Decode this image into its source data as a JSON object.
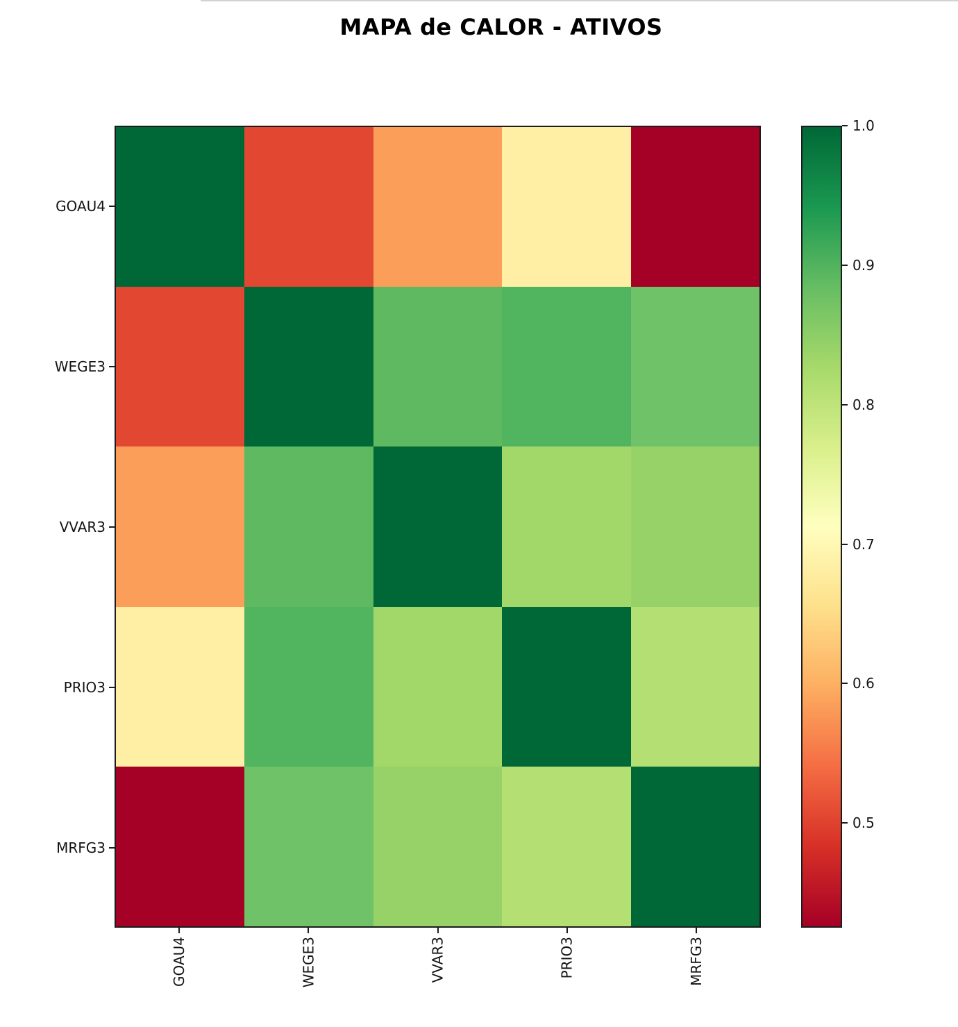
{
  "chart_data": {
    "type": "heatmap",
    "title": "MAPA de CALOR - ATIVOS",
    "x_labels": [
      "GOAU4",
      "WEGE3",
      "VVAR3",
      "PRIO3",
      "MRFG3"
    ],
    "y_labels": [
      "GOAU4",
      "WEGE3",
      "VVAR3",
      "PRIO3",
      "MRFG3"
    ],
    "matrix": [
      [
        1.0,
        0.5,
        0.58,
        0.68,
        0.42
      ],
      [
        0.5,
        1.0,
        0.89,
        0.9,
        0.87
      ],
      [
        0.58,
        0.89,
        1.0,
        0.83,
        0.84
      ],
      [
        0.68,
        0.9,
        0.83,
        1.0,
        0.81
      ],
      [
        0.42,
        0.87,
        0.84,
        0.81,
        1.0
      ]
    ],
    "cell_colors": [
      [
        "#006837",
        "#e24732",
        "#fb9e5a",
        "#feefa4",
        "#a50026"
      ],
      [
        "#e24732",
        "#006837",
        "#5eb961",
        "#51b45e",
        "#6fc267"
      ],
      [
        "#fb9e5a",
        "#5eb961",
        "#006837",
        "#a2d769",
        "#97d268"
      ],
      [
        "#feefa4",
        "#51b45e",
        "#a2d769",
        "#006837",
        "#b4df73"
      ],
      [
        "#a50026",
        "#6fc267",
        "#97d268",
        "#b4df73",
        "#006837"
      ]
    ],
    "colormap": "RdYlGn",
    "grid": false,
    "legend_position": "right",
    "colorbar": {
      "vmin": 0.425,
      "vmax": 1.0,
      "tick_labels": [
        "1.0",
        "0.9",
        "0.8",
        "0.7",
        "0.6",
        "0.5"
      ],
      "gradient_top_to_bottom": [
        "#006837",
        "#1a9850",
        "#66bd63",
        "#a6d96a",
        "#d9ef8b",
        "#ffffbf",
        "#fee08b",
        "#fdae61",
        "#f46d43",
        "#d73027",
        "#a50026"
      ]
    }
  }
}
